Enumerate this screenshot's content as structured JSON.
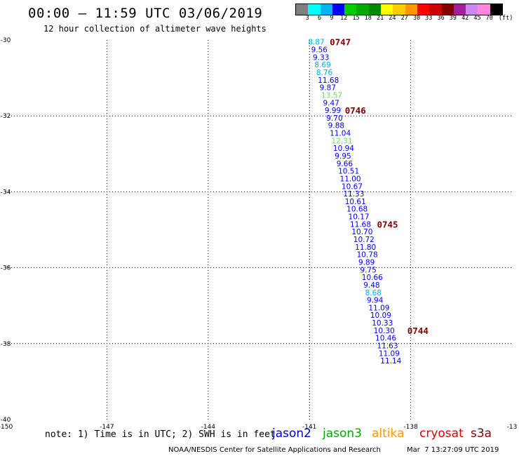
{
  "header": {
    "title": "00:00 – 11:59 UTC 03/06/2019",
    "subtitle": "12 hour collection of altimeter wave heights"
  },
  "colorbar": {
    "unit": "(ft)",
    "labels": [
      "3",
      "6",
      "9",
      "12",
      "15",
      "18",
      "21",
      "24",
      "27",
      "30",
      "33",
      "36",
      "39",
      "42",
      "45",
      "70"
    ],
    "colors": [
      "#7f7f7f",
      "#00ffff",
      "#00b2ee",
      "#0000ff",
      "#00cc00",
      "#00aa00",
      "#008800",
      "#ffff00",
      "#ffcc00",
      "#ff9900",
      "#ff0000",
      "#cc0000",
      "#800000",
      "#a020a0",
      "#cc88ee",
      "#ff88dd",
      "#000000"
    ]
  },
  "map": {
    "x_ticks": [
      "-150",
      "-147",
      "-144",
      "-141",
      "-138",
      "-13"
    ],
    "y_ticks": [
      "-30",
      "-32",
      "-34",
      "-36",
      "-38",
      "-40"
    ]
  },
  "chart_data": {
    "type": "scatter",
    "xlim": [
      -150,
      -135
    ],
    "ylim": [
      -40,
      -30
    ],
    "grid": true,
    "xlabel": "",
    "ylabel": "",
    "wave_heights_ft": [
      {
        "lon": -141.04,
        "lat": -30.05,
        "value": "8.87",
        "color": "#00b2ee"
      },
      {
        "lon": -140.95,
        "lat": -30.25,
        "value": "9.56",
        "color": "#0000ff"
      },
      {
        "lon": -140.9,
        "lat": -30.45,
        "value": "9.33",
        "color": "#0000ff"
      },
      {
        "lon": -140.85,
        "lat": -30.65,
        "value": "8.69",
        "color": "#00b2ee"
      },
      {
        "lon": -140.8,
        "lat": -30.85,
        "value": "8.76",
        "color": "#00b2ee"
      },
      {
        "lon": -140.75,
        "lat": -31.05,
        "value": "11.68",
        "color": "#0000ff"
      },
      {
        "lon": -140.7,
        "lat": -31.25,
        "value": "9.87",
        "color": "#0000ff"
      },
      {
        "lon": -140.65,
        "lat": -31.45,
        "value": "13.57",
        "color": "#66dd66"
      },
      {
        "lon": -140.6,
        "lat": -31.65,
        "value": "9.47",
        "color": "#0000ff"
      },
      {
        "lon": -140.55,
        "lat": -31.85,
        "value": "9.99",
        "color": "#0000ff"
      },
      {
        "lon": -140.5,
        "lat": -32.05,
        "value": "9.70",
        "color": "#0000ff"
      },
      {
        "lon": -140.45,
        "lat": -32.25,
        "value": "9.88",
        "color": "#0000ff"
      },
      {
        "lon": -140.4,
        "lat": -32.45,
        "value": "11.04",
        "color": "#0000ff"
      },
      {
        "lon": -140.35,
        "lat": -32.65,
        "value": "12.31",
        "color": "#66dd66"
      },
      {
        "lon": -140.3,
        "lat": -32.85,
        "value": "10.94",
        "color": "#0000ff"
      },
      {
        "lon": -140.25,
        "lat": -33.05,
        "value": "9.95",
        "color": "#0000ff"
      },
      {
        "lon": -140.2,
        "lat": -33.25,
        "value": "9.66",
        "color": "#0000ff"
      },
      {
        "lon": -140.15,
        "lat": -33.45,
        "value": "10.51",
        "color": "#0000ff"
      },
      {
        "lon": -140.1,
        "lat": -33.65,
        "value": "11.00",
        "color": "#0000ff"
      },
      {
        "lon": -140.05,
        "lat": -33.85,
        "value": "10.67",
        "color": "#0000ff"
      },
      {
        "lon": -140.0,
        "lat": -34.05,
        "value": "11.33",
        "color": "#0000ff"
      },
      {
        "lon": -139.95,
        "lat": -34.25,
        "value": "10.61",
        "color": "#0000ff"
      },
      {
        "lon": -139.9,
        "lat": -34.45,
        "value": "10.68",
        "color": "#0000ff"
      },
      {
        "lon": -139.85,
        "lat": -34.65,
        "value": "10.17",
        "color": "#0000ff"
      },
      {
        "lon": -139.8,
        "lat": -34.85,
        "value": "11.68",
        "color": "#0000ff"
      },
      {
        "lon": -139.75,
        "lat": -35.05,
        "value": "10.70",
        "color": "#0000ff"
      },
      {
        "lon": -139.7,
        "lat": -35.25,
        "value": "10.72",
        "color": "#0000ff"
      },
      {
        "lon": -139.65,
        "lat": -35.45,
        "value": "11.80",
        "color": "#0000ff"
      },
      {
        "lon": -139.6,
        "lat": -35.65,
        "value": "10.78",
        "color": "#0000ff"
      },
      {
        "lon": -139.55,
        "lat": -35.85,
        "value": "9.89",
        "color": "#0000ff"
      },
      {
        "lon": -139.5,
        "lat": -36.05,
        "value": "9.75",
        "color": "#0000ff"
      },
      {
        "lon": -139.45,
        "lat": -36.25,
        "value": "10.66",
        "color": "#0000ff"
      },
      {
        "lon": -139.4,
        "lat": -36.45,
        "value": "9.48",
        "color": "#0000ff"
      },
      {
        "lon": -139.35,
        "lat": -36.65,
        "value": "8.68",
        "color": "#00b2ee"
      },
      {
        "lon": -139.3,
        "lat": -36.85,
        "value": "9.94",
        "color": "#0000ff"
      },
      {
        "lon": -139.25,
        "lat": -37.05,
        "value": "11.09",
        "color": "#0000ff"
      },
      {
        "lon": -139.2,
        "lat": -37.25,
        "value": "10.09",
        "color": "#0000ff"
      },
      {
        "lon": -139.15,
        "lat": -37.45,
        "value": "10.33",
        "color": "#0000ff"
      },
      {
        "lon": -139.1,
        "lat": -37.65,
        "value": "10.30",
        "color": "#0000ff"
      },
      {
        "lon": -139.05,
        "lat": -37.85,
        "value": "10.46",
        "color": "#0000ff"
      },
      {
        "lon": -139.0,
        "lat": -38.05,
        "value": "11.63",
        "color": "#0000ff"
      },
      {
        "lon": -138.95,
        "lat": -38.25,
        "value": "11.09",
        "color": "#0000ff"
      },
      {
        "lon": -138.9,
        "lat": -38.45,
        "value": "11.14",
        "color": "#0000ff"
      }
    ],
    "time_labels": [
      {
        "lon": -140.4,
        "lat": -30.05,
        "text": "0747",
        "color": "#800000"
      },
      {
        "lon": -139.95,
        "lat": -31.85,
        "text": "0746",
        "color": "#800000"
      },
      {
        "lon": -139.0,
        "lat": -34.85,
        "text": "0745",
        "color": "#800000"
      },
      {
        "lon": -138.1,
        "lat": -37.65,
        "text": "0744",
        "color": "#800000"
      }
    ]
  },
  "footer": {
    "note": "note: 1) Time is in UTC; 2) SWH is in feet",
    "legend": [
      {
        "name": "jason2",
        "color": "#0000cc"
      },
      {
        "name": "jason3",
        "color": "#00aa00"
      },
      {
        "name": "altika",
        "color": "#ff9900"
      },
      {
        "name": "cryosat",
        "color": "#dd0000"
      },
      {
        "name": "s3a",
        "color": "#800000"
      }
    ],
    "credit": "NOAA/NESDIS Center for Satellite Applications and Research",
    "timestamp": "Mar  7 13:27:09 UTC 2019"
  }
}
